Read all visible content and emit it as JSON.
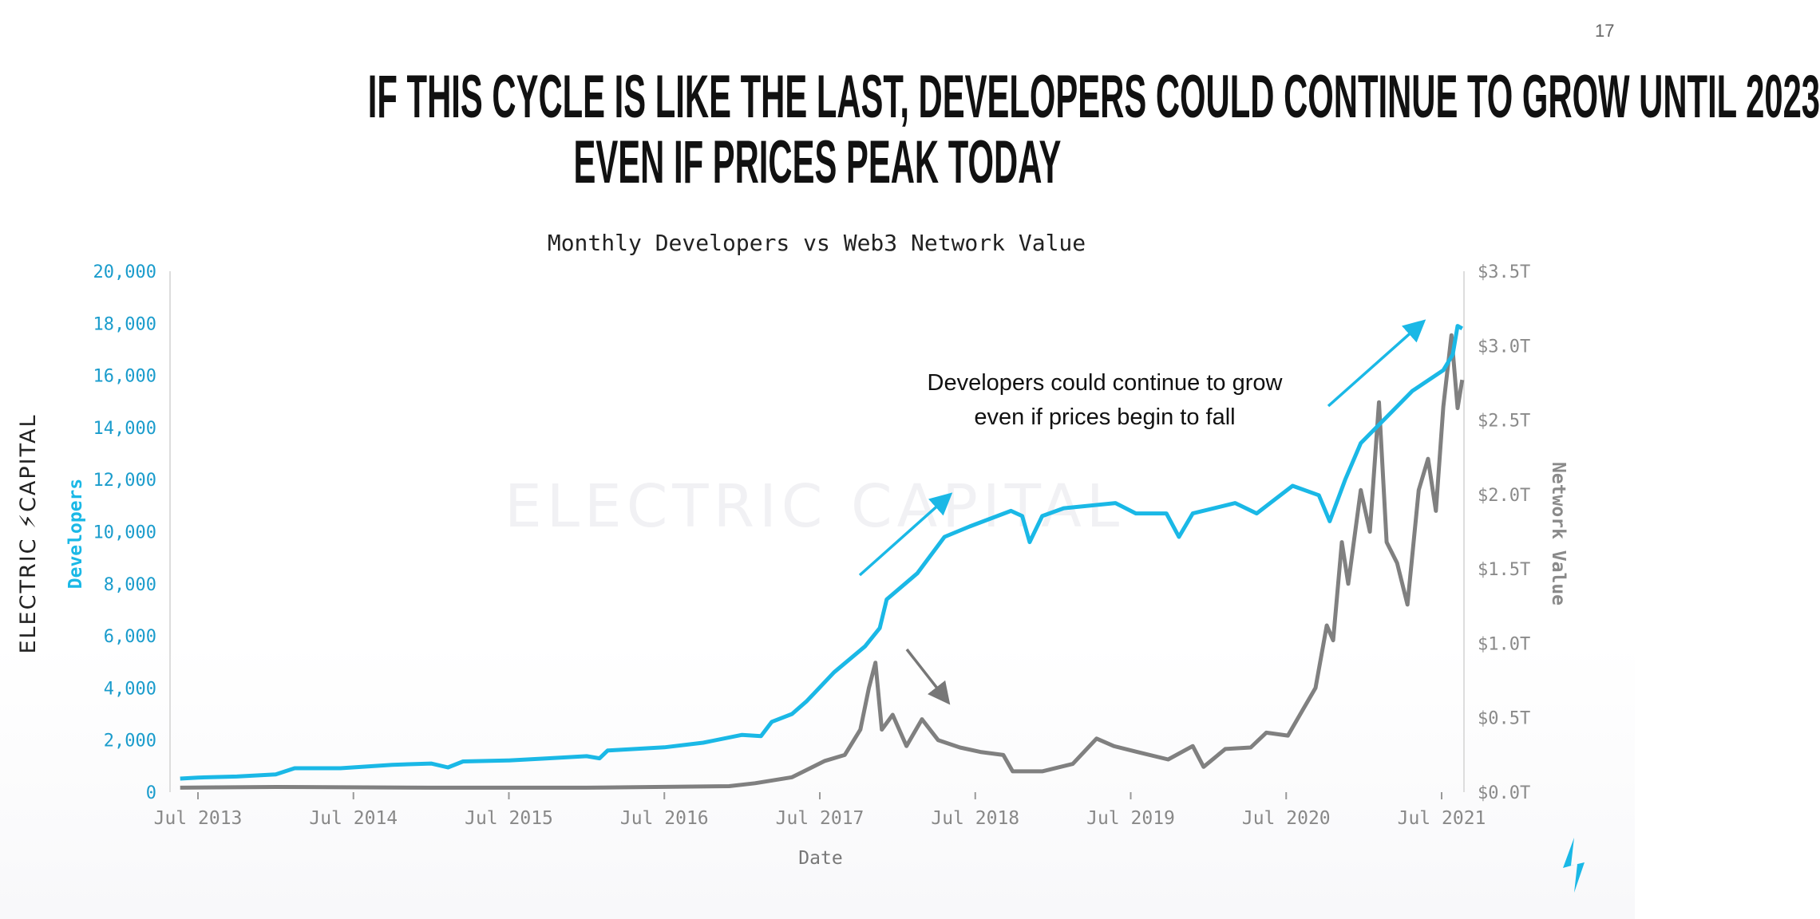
{
  "page_number": "17",
  "headline": {
    "line1": "IF THIS CYCLE IS LIKE THE LAST, DEVELOPERS COULD CONTINUE TO GROW UNTIL 2023",
    "line2": "EVEN IF PRICES PEAK TODAY"
  },
  "logo": {
    "text": "ELECTRIC CAPITAL",
    "color": "#222222",
    "accent": "#1ab8e6"
  },
  "watermark": "ELECTRIC CAPITAL",
  "annotation": {
    "line1": "Developers could continue to grow",
    "line2": "even if prices begin to fall"
  },
  "colors": {
    "developers": "#1ab8e6",
    "network_value": "#808080",
    "axis_left": "#1a9ccc",
    "axis_right": "#8a8a8a"
  },
  "chart_data": {
    "type": "line",
    "title": "Monthly Developers vs Web3 Network Value",
    "xlabel": "Date",
    "ylabel_left": "Developers",
    "ylabel_right": "Network Value",
    "x_ticks": [
      "Jul 2013",
      "Jul 2014",
      "Jul 2015",
      "Jul 2016",
      "Jul 2017",
      "Jul 2018",
      "Jul 2019",
      "Jul 2020",
      "Jul 2021"
    ],
    "y_left": {
      "range": [
        0,
        20000
      ],
      "ticks": [
        "0",
        "2,000",
        "4,000",
        "6,000",
        "8,000",
        "10,000",
        "12,000",
        "14,000",
        "16,000",
        "18,000",
        "20,000"
      ]
    },
    "y_right": {
      "range": [
        0,
        3.5
      ],
      "unit": "trillion USD",
      "ticks": [
        "$0.0T",
        "$0.5T",
        "$1.0T",
        "$1.5T",
        "$2.0T",
        "$2.5T",
        "$3.0T",
        "$3.5T"
      ]
    },
    "grid": false,
    "series": [
      {
        "name": "Developers",
        "axis": "left",
        "points": [
          [
            "2013-05-20",
            520
          ],
          [
            "2013-07-01",
            560
          ],
          [
            "2013-10-01",
            600
          ],
          [
            "2014-01-01",
            680
          ],
          [
            "2014-02-15",
            920
          ],
          [
            "2014-06-01",
            920
          ],
          [
            "2014-10-01",
            1050
          ],
          [
            "2015-01-01",
            1100
          ],
          [
            "2015-02-10",
            950
          ],
          [
            "2015-03-15",
            1180
          ],
          [
            "2015-07-01",
            1220
          ],
          [
            "2015-10-01",
            1300
          ],
          [
            "2016-01-01",
            1380
          ],
          [
            "2016-02-01",
            1300
          ],
          [
            "2016-02-20",
            1600
          ],
          [
            "2016-07-01",
            1720
          ],
          [
            "2016-10-01",
            1900
          ],
          [
            "2017-01-01",
            2200
          ],
          [
            "2017-02-15",
            2150
          ],
          [
            "2017-03-10",
            2700
          ],
          [
            "2017-04-27",
            3000
          ],
          [
            "2017-06-01",
            3500
          ],
          [
            "2017-08-04",
            4600
          ],
          [
            "2017-10-16",
            5600
          ],
          [
            "2017-11-20",
            6300
          ],
          [
            "2017-12-06",
            7400
          ],
          [
            "2018-02-17",
            8400
          ],
          [
            "2018-04-20",
            9800
          ],
          [
            "2018-06-18",
            10200
          ],
          [
            "2018-09-24",
            10800
          ],
          [
            "2018-10-20",
            10600
          ],
          [
            "2018-11-07",
            9600
          ],
          [
            "2018-12-06",
            10600
          ],
          [
            "2019-01-26",
            10900
          ],
          [
            "2019-05-26",
            11100
          ],
          [
            "2019-07-13",
            10700
          ],
          [
            "2019-09-24",
            10700
          ],
          [
            "2019-10-23",
            9800
          ],
          [
            "2019-11-25",
            10700
          ],
          [
            "2020-03-03",
            11100
          ],
          [
            "2020-04-23",
            10700
          ],
          [
            "2020-07-16",
            11760
          ],
          [
            "2020-09-17",
            11400
          ],
          [
            "2020-10-12",
            10400
          ],
          [
            "2020-11-18",
            12000
          ],
          [
            "2020-12-24",
            13400
          ],
          [
            "2021-02-24",
            14400
          ],
          [
            "2021-04-23",
            15400
          ],
          [
            "2021-07-05",
            16200
          ],
          [
            "2021-07-27",
            16800
          ],
          [
            "2021-08-08",
            17900
          ],
          [
            "2021-08-19",
            17800
          ]
        ]
      },
      {
        "name": "Network Value",
        "axis": "right",
        "points": [
          [
            "2013-05-20",
            0.03
          ],
          [
            "2014-01-01",
            0.035
          ],
          [
            "2015-01-01",
            0.03
          ],
          [
            "2016-01-01",
            0.03
          ],
          [
            "2016-12-01",
            0.04
          ],
          [
            "2017-02-01",
            0.06
          ],
          [
            "2017-04-27",
            0.1
          ],
          [
            "2017-07-13",
            0.21
          ],
          [
            "2017-08-29",
            0.25
          ],
          [
            "2017-10-05",
            0.42
          ],
          [
            "2017-10-25",
            0.7
          ],
          [
            "2017-11-10",
            0.87
          ],
          [
            "2017-11-25",
            0.42
          ],
          [
            "2017-12-20",
            0.52
          ],
          [
            "2018-01-22",
            0.31
          ],
          [
            "2018-02-28",
            0.49
          ],
          [
            "2018-04-05",
            0.35
          ],
          [
            "2018-05-26",
            0.3
          ],
          [
            "2018-07-13",
            0.27
          ],
          [
            "2018-09-06",
            0.25
          ],
          [
            "2018-09-28",
            0.14
          ],
          [
            "2018-12-06",
            0.14
          ],
          [
            "2019-02-17",
            0.19
          ],
          [
            "2019-04-12",
            0.36
          ],
          [
            "2019-05-22",
            0.31
          ],
          [
            "2019-07-16",
            0.27
          ],
          [
            "2019-09-28",
            0.22
          ],
          [
            "2019-11-25",
            0.31
          ],
          [
            "2019-12-20",
            0.17
          ],
          [
            "2020-02-10",
            0.29
          ],
          [
            "2020-04-09",
            0.3
          ],
          [
            "2020-05-15",
            0.4
          ],
          [
            "2020-07-05",
            0.38
          ],
          [
            "2020-08-11",
            0.56
          ],
          [
            "2020-09-09",
            0.7
          ],
          [
            "2020-10-05",
            1.12
          ],
          [
            "2020-10-20",
            1.02
          ],
          [
            "2020-11-10",
            1.68
          ],
          [
            "2020-11-25",
            1.4
          ],
          [
            "2020-12-24",
            2.03
          ],
          [
            "2021-01-15",
            1.75
          ],
          [
            "2021-02-06",
            2.62
          ],
          [
            "2021-02-24",
            1.68
          ],
          [
            "2021-03-18",
            1.54
          ],
          [
            "2021-04-12",
            1.26
          ],
          [
            "2021-05-08",
            2.03
          ],
          [
            "2021-05-30",
            2.24
          ],
          [
            "2021-06-18",
            1.89
          ],
          [
            "2021-07-05",
            2.59
          ],
          [
            "2021-07-24",
            3.07
          ],
          [
            "2021-08-08",
            2.58
          ],
          [
            "2021-08-19",
            2.77
          ]
        ]
      }
    ]
  }
}
